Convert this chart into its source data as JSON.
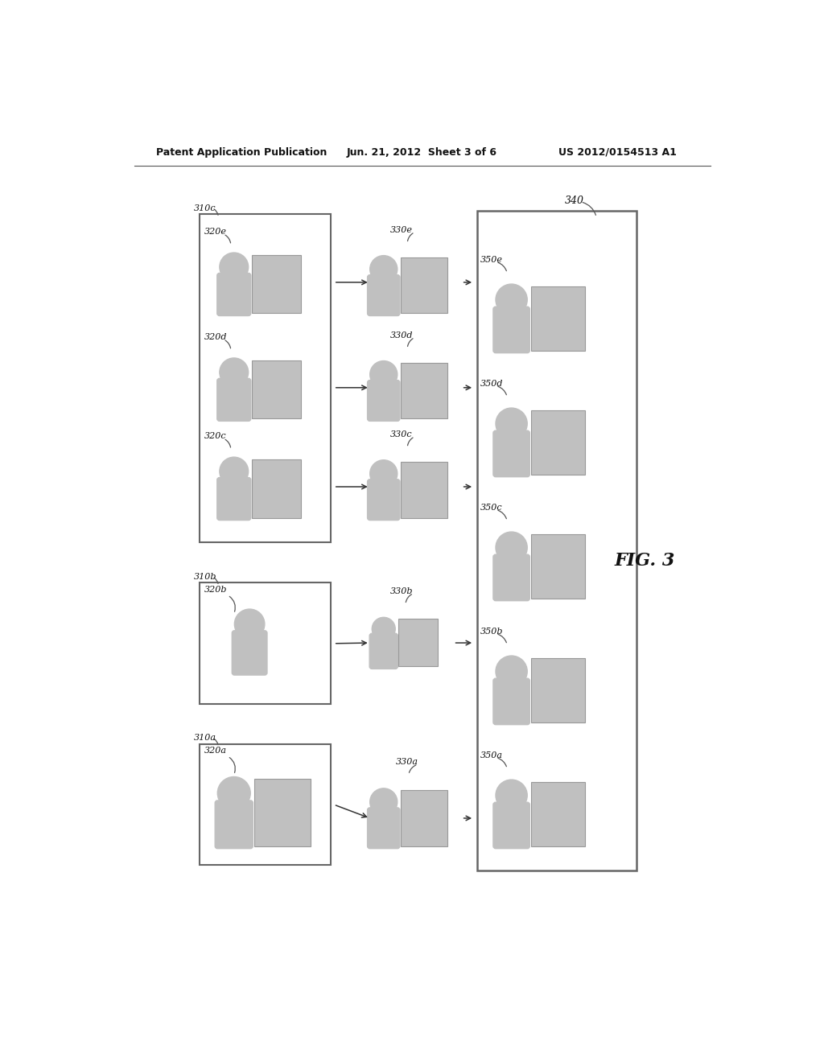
{
  "header_left": "Patent Application Publication",
  "header_mid": "Jun. 21, 2012  Sheet 3 of 6",
  "header_right": "US 2012/0154513 A1",
  "fig_label": "FIG. 3",
  "bg_color": "#ffffff",
  "icon_fill": "#c0c0c0",
  "box_edge": "#666666",
  "arrow_color": "#333333",
  "text_color": "#111111",
  "label_color": "#555555"
}
